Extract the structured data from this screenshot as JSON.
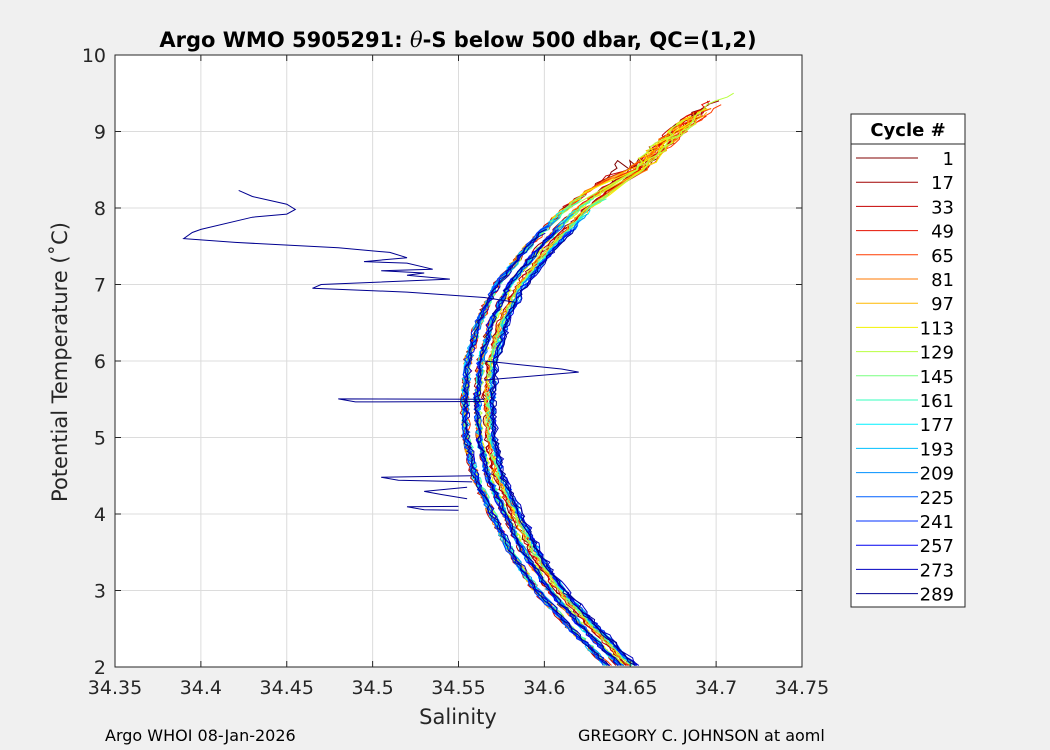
{
  "chart_data": {
    "type": "line",
    "title_prefix": "Argo WMO 5905291: ",
    "title_theta": "θ",
    "title_suffix": "-S below 500 dbar,  QC=(1,2)",
    "xlabel": "Salinity",
    "ylabel": "Potential Temperature (˚C)",
    "xlim": [
      34.35,
      34.75
    ],
    "ylim": [
      2,
      10
    ],
    "xticks": [
      34.35,
      34.4,
      34.45,
      34.5,
      34.55,
      34.6,
      34.65,
      34.7,
      34.75
    ],
    "xtick_labels": [
      "34.35",
      "34.4",
      "34.45",
      "34.5",
      "34.55",
      "34.6",
      "34.65",
      "34.7",
      "34.75"
    ],
    "yticks": [
      2,
      3,
      4,
      5,
      6,
      7,
      8,
      9,
      10
    ],
    "ytick_labels": [
      "2",
      "3",
      "4",
      "5",
      "6",
      "7",
      "8",
      "9",
      "10"
    ],
    "grid": true,
    "legend_title": "Cycle #",
    "legend_position": "outside-right",
    "series": [
      {
        "name": "1",
        "color": "#800000"
      },
      {
        "name": "17",
        "color": "#a00000"
      },
      {
        "name": "33",
        "color": "#c40000"
      },
      {
        "name": "49",
        "color": "#e41000"
      },
      {
        "name": "65",
        "color": "#ff3c00"
      },
      {
        "name": "81",
        "color": "#ff7a00"
      },
      {
        "name": "97",
        "color": "#ffb800"
      },
      {
        "name": "113",
        "color": "#f2f200"
      },
      {
        "name": "129",
        "color": "#b8ff40"
      },
      {
        "name": "145",
        "color": "#78ff80"
      },
      {
        "name": "161",
        "color": "#36ffbe"
      },
      {
        "name": "177",
        "color": "#00f0ff"
      },
      {
        "name": "193",
        "color": "#00c0ff"
      },
      {
        "name": "209",
        "color": "#0090ff"
      },
      {
        "name": "225",
        "color": "#0060ff"
      },
      {
        "name": "241",
        "color": "#0030ff"
      },
      {
        "name": "257",
        "color": "#0000f0"
      },
      {
        "name": "273",
        "color": "#0000c0"
      },
      {
        "name": "289",
        "color": "#000090"
      }
    ],
    "typical_profile": {
      "theta": [
        2.0,
        2.5,
        3.0,
        3.5,
        4.0,
        4.5,
        5.0,
        5.5,
        6.0,
        6.5,
        7.0,
        7.5,
        8.0,
        8.5
      ],
      "salinity": [
        34.645,
        34.623,
        34.603,
        34.588,
        34.577,
        34.567,
        34.562,
        34.561,
        34.563,
        34.569,
        34.58,
        34.598,
        34.62,
        34.65
      ]
    },
    "upper_extension": {
      "theta": [
        8.5,
        8.8,
        9.1,
        9.4,
        9.6
      ],
      "salinity": [
        34.655,
        34.668,
        34.683,
        34.7,
        34.715
      ]
    },
    "anomaly_profile": {
      "name": "289",
      "points": [
        [
          34.422,
          8.23
        ],
        [
          34.43,
          8.15
        ],
        [
          34.44,
          8.1
        ],
        [
          34.45,
          8.05
        ],
        [
          34.455,
          7.98
        ],
        [
          34.45,
          7.92
        ],
        [
          34.43,
          7.88
        ],
        [
          34.4,
          7.72
        ],
        [
          34.395,
          7.68
        ],
        [
          34.39,
          7.6
        ],
        [
          34.42,
          7.55
        ],
        [
          34.48,
          7.48
        ],
        [
          34.51,
          7.42
        ],
        [
          34.52,
          7.35
        ],
        [
          34.495,
          7.3
        ],
        [
          34.52,
          7.28
        ],
        [
          34.535,
          7.2
        ],
        [
          34.505,
          7.18
        ],
        [
          34.53,
          7.15
        ],
        [
          34.52,
          7.12
        ],
        [
          34.545,
          7.07
        ],
        [
          34.47,
          7.0
        ],
        [
          34.465,
          6.95
        ],
        [
          34.52,
          6.9
        ],
        [
          34.565,
          6.83
        ]
      ],
      "mid_spikes": [
        [
          34.565,
          6.0,
          34.61,
          5.75
        ],
        [
          34.565,
          5.5,
          34.48,
          5.47
        ]
      ],
      "lower_spikes": [
        [
          34.558,
          4.5,
          34.505,
          4.42
        ],
        [
          34.555,
          4.35,
          34.53,
          4.2
        ],
        [
          34.55,
          4.1,
          34.52,
          4.05
        ]
      ]
    }
  },
  "footer": {
    "left": "Argo WHOI 08-Jan-2026",
    "right": "GREGORY C. JOHNSON at aoml"
  }
}
